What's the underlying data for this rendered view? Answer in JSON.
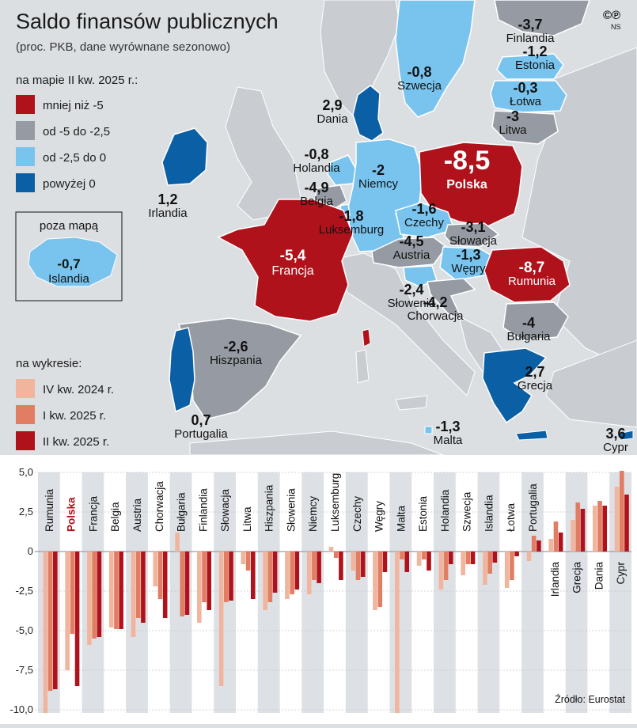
{
  "title": "Saldo finansów publicznych",
  "subtitle": "(proc. PKB, dane wyrównane sezonowo)",
  "logo": "©℗",
  "logo_sub": "NS",
  "map_legend": {
    "header": "na mapie II kw. 2025 r.:",
    "items": [
      {
        "label": "mniej niż -5",
        "color": "#b0121b"
      },
      {
        "label": "od -5 do -2,5",
        "color": "#969ba3"
      },
      {
        "label": "od -2,5 do 0",
        "color": "#79c4ee"
      },
      {
        "label": "powyżej 0",
        "color": "#0b5fa5"
      }
    ]
  },
  "inset": {
    "header": "poza mapą",
    "value": "-0,7",
    "name": "Islandia"
  },
  "map_labels": [
    {
      "name": "Finlandia",
      "value": "-3,7",
      "cat": "gray"
    },
    {
      "name": "Szwecja",
      "value": "-0,8",
      "cat": "light"
    },
    {
      "name": "Estonia",
      "value": "-1,2",
      "cat": "light"
    },
    {
      "name": "Łotwa",
      "value": "-0,3",
      "cat": "light"
    },
    {
      "name": "Litwa",
      "value": "-3",
      "cat": "gray"
    },
    {
      "name": "Dania",
      "value": "2,9",
      "cat": "dark"
    },
    {
      "name": "Irlandia",
      "value": "1,2",
      "cat": "dark"
    },
    {
      "name": "Holandia",
      "value": "-0,8",
      "cat": "light"
    },
    {
      "name": "Belgia",
      "value": "-4,9",
      "cat": "gray"
    },
    {
      "name": "Niemcy",
      "value": "-2",
      "cat": "light"
    },
    {
      "name": "Polska",
      "value": "-8,5",
      "cat": "red"
    },
    {
      "name": "Luksemburg",
      "value": "-1,8",
      "cat": "light"
    },
    {
      "name": "Czechy",
      "value": "-1,6",
      "cat": "light"
    },
    {
      "name": "Słowacja",
      "value": "-3,1",
      "cat": "gray"
    },
    {
      "name": "Austria",
      "value": "-4,5",
      "cat": "gray"
    },
    {
      "name": "Węgry",
      "value": "-1,3",
      "cat": "light"
    },
    {
      "name": "Francja",
      "value": "-5,4",
      "cat": "red"
    },
    {
      "name": "Rumunia",
      "value": "-8,7",
      "cat": "red"
    },
    {
      "name": "Słowenia",
      "value": "-2,4",
      "cat": "light"
    },
    {
      "name": "Chorwacja",
      "value": "-4,2",
      "cat": "gray"
    },
    {
      "name": "Bułgaria",
      "value": "-4",
      "cat": "gray"
    },
    {
      "name": "Hiszpania",
      "value": "-2,6",
      "cat": "gray"
    },
    {
      "name": "Grecja",
      "value": "2,7",
      "cat": "dark"
    },
    {
      "name": "Portugalia",
      "value": "0,7",
      "cat": "dark"
    },
    {
      "name": "Malta",
      "value": "-1,3",
      "cat": "light"
    },
    {
      "name": "Cypr",
      "value": "3,6",
      "cat": "dark"
    }
  ],
  "chart_legend": {
    "header": "na wykresie:",
    "items": [
      {
        "label": "IV kw. 2024 r.",
        "color": "#f1b49c"
      },
      {
        "label": "I kw. 2025 r.",
        "color": "#e17d62"
      },
      {
        "label": "II kw. 2025 r.",
        "color": "#b0121b"
      }
    ]
  },
  "chart_data": {
    "type": "bar",
    "series_names": [
      "IV kw. 2024 r.",
      "I kw. 2025 r.",
      "II kw. 2025 r."
    ],
    "series_colors": [
      "#f1b49c",
      "#e17d62",
      "#b0121b"
    ],
    "ylim": [
      -10,
      5
    ],
    "yticks": [
      5,
      2.5,
      0,
      -2.5,
      -5,
      -7.5,
      -10
    ],
    "ytick_labels": [
      "5,0",
      "2,5",
      "0",
      "-2,5",
      "-5,0",
      "-7,5",
      "-10,0"
    ],
    "highlight": "Polska",
    "categories": [
      "Rumunia",
      "Polska",
      "Francja",
      "Belgia",
      "Austria",
      "Chorwacja",
      "Bułgaria",
      "Finlandia",
      "Słowacja",
      "Litwa",
      "Hiszpania",
      "Słowenia",
      "Niemcy",
      "Luksemburg",
      "Czechy",
      "Węgry",
      "Malta",
      "Estonia",
      "Holandia",
      "Szwecja",
      "Islandia",
      "Łotwa",
      "Portugalia",
      "Irlandia",
      "Grecja",
      "Dania",
      "Cypr"
    ],
    "values": [
      [
        -10.2,
        -8.8,
        -8.7
      ],
      [
        -7.5,
        -5.2,
        -8.5
      ],
      [
        -5.9,
        -5.5,
        -5.4
      ],
      [
        -4.8,
        -4.9,
        -4.9
      ],
      [
        -5.4,
        -4.2,
        -4.5
      ],
      [
        -2.2,
        -3.0,
        -4.2
      ],
      [
        1.2,
        -4.1,
        -4.0
      ],
      [
        -4.5,
        -3.2,
        -3.7
      ],
      [
        -8.5,
        -3.2,
        -3.1
      ],
      [
        -0.8,
        -1.2,
        -3.0
      ],
      [
        -3.7,
        -3.2,
        -2.6
      ],
      [
        -3.0,
        -2.7,
        -2.4
      ],
      [
        -2.7,
        -1.8,
        -2.0
      ],
      [
        0.3,
        -0.4,
        -1.8
      ],
      [
        -1.2,
        -1.8,
        -1.6
      ],
      [
        -3.7,
        -3.5,
        -1.3
      ],
      [
        -10.2,
        -0.5,
        -1.3
      ],
      [
        -0.9,
        -0.5,
        -1.2
      ],
      [
        -2.4,
        -1.8,
        -0.8
      ],
      [
        -1.5,
        -0.8,
        -0.8
      ],
      [
        -2.1,
        -1.4,
        -0.7
      ],
      [
        -2.3,
        -1.8,
        -0.3
      ],
      [
        -0.6,
        1.0,
        0.7
      ],
      [
        0.8,
        1.9,
        1.2
      ],
      [
        2.0,
        3.1,
        2.7
      ],
      [
        2.9,
        3.2,
        2.9
      ],
      [
        4.1,
        5.1,
        3.6
      ]
    ],
    "source": "Źródło: Eurostat"
  }
}
